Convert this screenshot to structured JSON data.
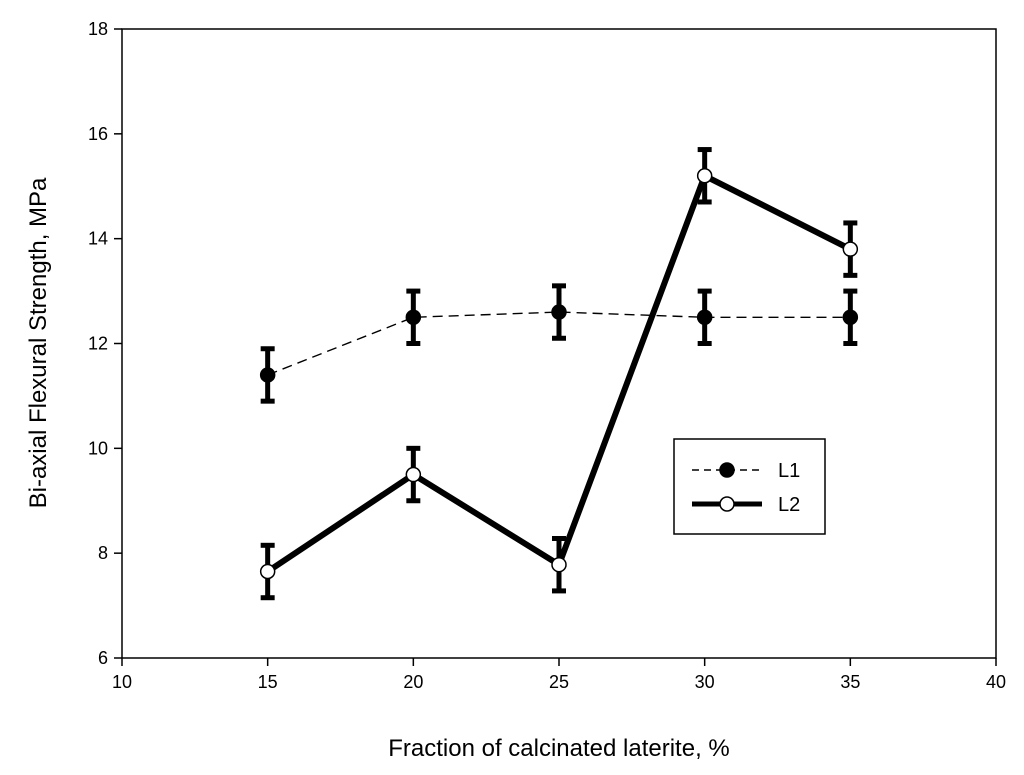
{
  "chart_data": {
    "type": "line",
    "title": "",
    "xlabel": "Fraction of calcinated laterite, %",
    "ylabel": "Bi-axial Flexural Strength, MPa",
    "xlim": [
      10,
      40
    ],
    "ylim": [
      6,
      18
    ],
    "xticks": [
      10,
      15,
      20,
      25,
      30,
      35,
      40
    ],
    "yticks": [
      6,
      8,
      10,
      12,
      14,
      16,
      18
    ],
    "grid": false,
    "legend_position": "center-right",
    "series": [
      {
        "name": "L1",
        "x": [
          15,
          20,
          25,
          30,
          35
        ],
        "values": [
          11.4,
          12.5,
          12.6,
          12.5,
          12.5
        ],
        "errors": [
          0.5,
          0.5,
          0.5,
          0.5,
          0.5
        ],
        "line_style": "dashed",
        "marker": "filled-circle",
        "color": "#000000"
      },
      {
        "name": "L2",
        "x": [
          15,
          20,
          25,
          30,
          35
        ],
        "values": [
          7.65,
          9.5,
          7.78,
          15.2,
          13.8
        ],
        "errors": [
          0.5,
          0.5,
          0.5,
          0.5,
          0.5
        ],
        "line_style": "solid-thick",
        "marker": "open-circle",
        "color": "#000000"
      }
    ]
  }
}
